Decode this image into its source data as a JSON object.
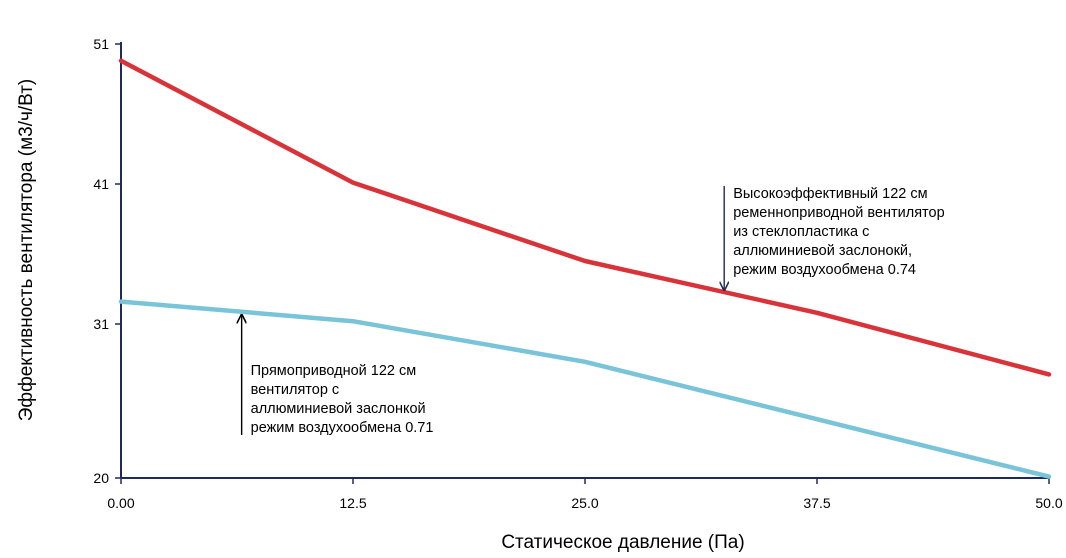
{
  "chart_data": {
    "type": "line",
    "title": "",
    "xlabel": "Статическое давление (Па)",
    "ylabel": "Эффективность вентилятора (м3/ч/Вт)",
    "x_ticks": [
      "0.00",
      "12.5",
      "25.0",
      "37.5",
      "50.0"
    ],
    "y_ticks": [
      "20",
      "31",
      "41",
      "51"
    ],
    "xlim": [
      0,
      50
    ],
    "ylim": [
      20,
      51
    ],
    "grid": false,
    "legend": "none",
    "series": [
      {
        "color": "#d9333a",
        "x": [
          0,
          12.5,
          25,
          37.5,
          50
        ],
        "y": [
          49.8,
          41.1,
          35.5,
          31.8,
          27.4
        ]
      },
      {
        "color": "#79c4d8",
        "x": [
          0,
          12.5,
          25,
          37.5,
          50
        ],
        "y": [
          32.6,
          31.2,
          28.3,
          24.2,
          20.1
        ]
      }
    ],
    "annotations": [
      {
        "lines": [
          "Высокоэффективный 122 см",
          "ременноприводной вентилятор",
          "из стеклопластика с",
          "аллюминиевой  заслонокй,",
          "режим воздухообмена 0.74"
        ],
        "arrow_color": "#1f2a5c",
        "arrow_x": 32.5
      },
      {
        "lines": [
          "Прямоприводной 122 см",
          "вентилятор с",
          "аллюминиевой заслонкой",
          "режим воздухообмена 0.71"
        ],
        "arrow_color": "#000000",
        "arrow_x": 6.5
      }
    ],
    "axis_color": "#1f2a5c"
  }
}
